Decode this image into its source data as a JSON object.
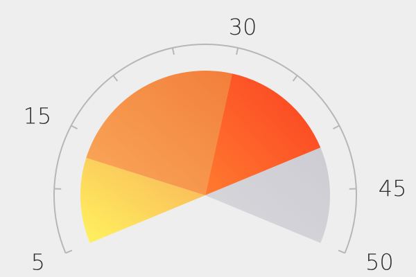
{
  "chart_data": {
    "type": "gauge",
    "range": [
      5,
      50
    ],
    "tick_labels": [
      {
        "value": 5,
        "text": "5"
      },
      {
        "value": 15,
        "text": "15"
      },
      {
        "value": 30,
        "text": "30"
      },
      {
        "value": 45,
        "text": "45"
      },
      {
        "value": 50,
        "text": "50"
      }
    ],
    "major_ticks": [
      5,
      10,
      15,
      20,
      25,
      30,
      35,
      40,
      45,
      50
    ],
    "segments": [
      {
        "from": 5,
        "to": 13,
        "color_start": "#fff35e",
        "color_end": "#f9b25a"
      },
      {
        "from": 13,
        "to": 30,
        "color_start": "#f9a95a",
        "color_end": "#f27e3a"
      },
      {
        "from": 30,
        "to": 41,
        "color_start": "#ff7a30",
        "color_end": "#fb3f20"
      },
      {
        "from": 41,
        "to": 50,
        "color_start": "#d7d7dc",
        "color_end": "#ccccd2"
      }
    ],
    "colors": {
      "background": "#eeeeee",
      "scale_arc": "#b6b6b6",
      "label_text": "#2b2b2b"
    }
  }
}
